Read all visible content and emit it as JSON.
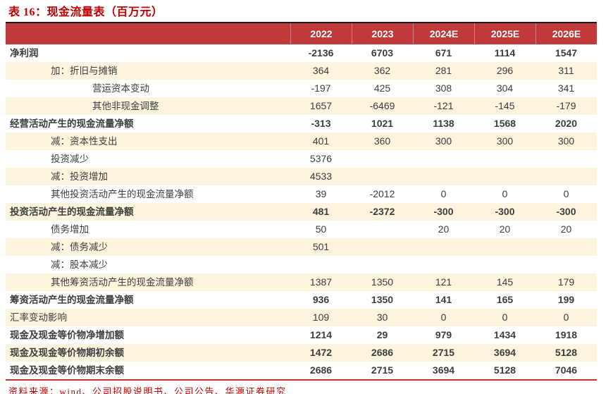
{
  "title": "表 16：现金流量表（百万元）",
  "source": "资料来源：wind、公司招股说明书、公司公告、华源证券研究",
  "colors": {
    "title_red": "#c00000",
    "header_bg": "#c0393b",
    "stripe_bg": "#fdf4de",
    "text": "#3d3d3d",
    "top_border": "#1a1a1a",
    "bottom_border": "#c0392b"
  },
  "table": {
    "columns": [
      "2022",
      "2023",
      "2024E",
      "2025E",
      "2026E"
    ],
    "rows": [
      {
        "label": "净利润",
        "indent": 0,
        "bold": true,
        "values": [
          "-2136",
          "6703",
          "671",
          "1114",
          "1547"
        ]
      },
      {
        "label": "加：折旧与摊销",
        "indent": 1,
        "bold": false,
        "values": [
          "364",
          "362",
          "281",
          "296",
          "311"
        ]
      },
      {
        "label": "营运资本变动",
        "indent": 2,
        "bold": false,
        "values": [
          "-197",
          "425",
          "308",
          "304",
          "341"
        ]
      },
      {
        "label": "其他非现金调整",
        "indent": 2,
        "bold": false,
        "values": [
          "1657",
          "-6469",
          "-121",
          "-145",
          "-179"
        ]
      },
      {
        "label": "经营活动产生的现金流量净额",
        "indent": 0,
        "bold": true,
        "values": [
          "-313",
          "1021",
          "1138",
          "1568",
          "2020"
        ]
      },
      {
        "label": "减：资本性支出",
        "indent": 1,
        "bold": false,
        "values": [
          "401",
          "360",
          "300",
          "300",
          "300"
        ]
      },
      {
        "label": "投资减少",
        "indent": 1,
        "bold": false,
        "values": [
          "5376",
          "",
          "",
          "",
          ""
        ]
      },
      {
        "label": "减：投资增加",
        "indent": 1,
        "bold": false,
        "values": [
          "4533",
          "",
          "",
          "",
          ""
        ]
      },
      {
        "label": "其他投资活动产生的现金流量净额",
        "indent": 1,
        "bold": false,
        "values": [
          "39",
          "-2012",
          "0",
          "0",
          "0"
        ]
      },
      {
        "label": "投资活动产生的现金流量净额",
        "indent": 0,
        "bold": true,
        "values": [
          "481",
          "-2372",
          "-300",
          "-300",
          "-300"
        ]
      },
      {
        "label": "债务增加",
        "indent": 1,
        "bold": false,
        "values": [
          "50",
          "",
          "20",
          "20",
          "20"
        ]
      },
      {
        "label": "减：债务减少",
        "indent": 1,
        "bold": false,
        "values": [
          "501",
          "",
          "",
          "",
          ""
        ]
      },
      {
        "label": "减：股本减少",
        "indent": 1,
        "bold": false,
        "values": [
          "",
          "",
          "",
          "",
          ""
        ]
      },
      {
        "label": "其他筹资活动产生的现金流量净额",
        "indent": 1,
        "bold": false,
        "values": [
          "1387",
          "1350",
          "121",
          "145",
          "179"
        ]
      },
      {
        "label": "筹资活动产生的现金流量净额",
        "indent": 0,
        "bold": true,
        "values": [
          "936",
          "1350",
          "141",
          "165",
          "199"
        ]
      },
      {
        "label": "汇率变动影响",
        "indent": 0,
        "bold": false,
        "values": [
          "109",
          "30",
          "0",
          "0",
          "0"
        ]
      },
      {
        "label": "现金及现金等价物净增加额",
        "indent": 0,
        "bold": true,
        "values": [
          "1214",
          "29",
          "979",
          "1434",
          "1918"
        ]
      },
      {
        "label": "现金及现金等价物期初余额",
        "indent": 0,
        "bold": true,
        "values": [
          "1472",
          "2686",
          "2715",
          "3694",
          "5128"
        ]
      },
      {
        "label": "现金及现金等价物期末余额",
        "indent": 0,
        "bold": true,
        "values": [
          "2686",
          "2715",
          "3694",
          "5128",
          "7046"
        ]
      }
    ]
  }
}
